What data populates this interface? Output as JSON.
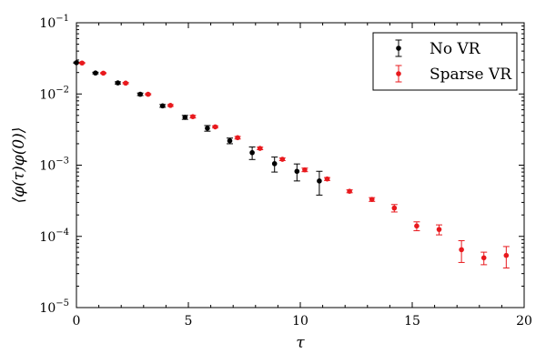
{
  "chart_data": {
    "type": "scatter",
    "title": "",
    "xlabel": "τ",
    "ylabel": "⟨φ(τ)φ(0)⟩",
    "xlim": [
      0,
      20
    ],
    "ylim": [
      1e-05,
      0.1
    ],
    "yscale": "log",
    "grid": false,
    "legend_position": "top-right",
    "x_ticks": [
      {
        "value": 0,
        "label": "0"
      },
      {
        "value": 5,
        "label": "5"
      },
      {
        "value": 10,
        "label": "10"
      },
      {
        "value": 15,
        "label": "15"
      },
      {
        "value": 20,
        "label": "20"
      }
    ],
    "y_ticks": [
      {
        "value": 0.1,
        "base": "10",
        "exp": "−1"
      },
      {
        "value": 0.01,
        "base": "10",
        "exp": "−2"
      },
      {
        "value": 0.001,
        "base": "10",
        "exp": "−3"
      },
      {
        "value": 0.0001,
        "base": "10",
        "exp": "−4"
      },
      {
        "value": 1e-05,
        "base": "10",
        "exp": "−5"
      }
    ],
    "series": [
      {
        "name": "No VR",
        "color": "#000000",
        "points": [
          {
            "x": 0,
            "y": 0.0275,
            "err": 0.0005
          },
          {
            "x": 0.85,
            "y": 0.0197,
            "err": 0.0005
          },
          {
            "x": 1.85,
            "y": 0.0143,
            "err": 0.0005
          },
          {
            "x": 2.85,
            "y": 0.0099,
            "err": 0.0004
          },
          {
            "x": 3.85,
            "y": 0.0068,
            "err": 0.0003
          },
          {
            "x": 4.85,
            "y": 0.0047,
            "err": 0.0003
          },
          {
            "x": 5.85,
            "y": 0.0033,
            "err": 0.0003
          },
          {
            "x": 6.85,
            "y": 0.0022,
            "err": 0.0002
          },
          {
            "x": 7.85,
            "y": 0.0015,
            "err": 0.0003
          },
          {
            "x": 8.85,
            "y": 0.00105,
            "err": 0.00025
          },
          {
            "x": 9.85,
            "y": 0.00082,
            "err": 0.00022
          },
          {
            "x": 10.85,
            "y": 0.0006,
            "err": 0.00022
          }
        ]
      },
      {
        "name": "Sparse VR",
        "color": "#e8191d",
        "points": [
          {
            "x": 0.25,
            "y": 0.0272,
            "err": 0.0004
          },
          {
            "x": 1.2,
            "y": 0.0196,
            "err": 0.0003
          },
          {
            "x": 2.2,
            "y": 0.0142,
            "err": 0.0003
          },
          {
            "x": 3.2,
            "y": 0.0099,
            "err": 0.0002
          },
          {
            "x": 4.2,
            "y": 0.0069,
            "err": 0.0002
          },
          {
            "x": 5.2,
            "y": 0.0048,
            "err": 0.0002
          },
          {
            "x": 6.2,
            "y": 0.00345,
            "err": 0.0001
          },
          {
            "x": 7.2,
            "y": 0.00243,
            "err": 0.0001
          },
          {
            "x": 8.2,
            "y": 0.00172,
            "err": 7e-05
          },
          {
            "x": 9.2,
            "y": 0.00121,
            "err": 5e-05
          },
          {
            "x": 10.2,
            "y": 0.00086,
            "err": 5e-05
          },
          {
            "x": 11.2,
            "y": 0.00064,
            "err": 3e-05
          },
          {
            "x": 12.2,
            "y": 0.00043,
            "err": 2e-05
          },
          {
            "x": 13.2,
            "y": 0.00033,
            "err": 2e-05
          },
          {
            "x": 14.2,
            "y": 0.00025,
            "err": 3e-05
          },
          {
            "x": 15.2,
            "y": 0.00014,
            "err": 2e-05
          },
          {
            "x": 16.2,
            "y": 0.000125,
            "err": 2e-05
          },
          {
            "x": 17.2,
            "y": 6.5e-05,
            "err": 2.2e-05
          },
          {
            "x": 18.2,
            "y": 5e-05,
            "err": 1e-05
          },
          {
            "x": 19.2,
            "y": 5.4e-05,
            "err": 1.8e-05
          }
        ]
      }
    ]
  }
}
